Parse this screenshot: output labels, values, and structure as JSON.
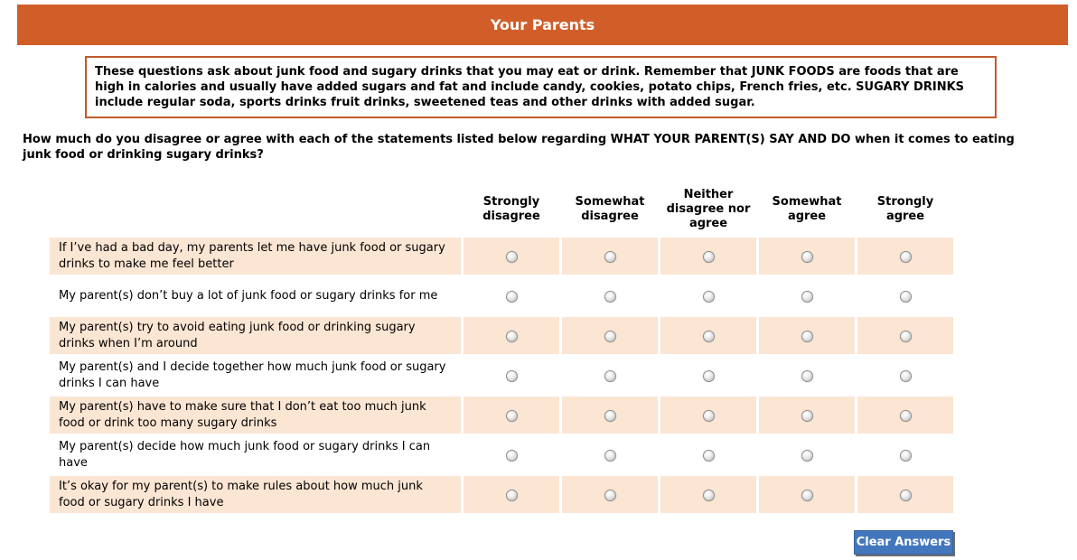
{
  "header": {
    "title": "Your Parents"
  },
  "instructions": {
    "text": "These questions ask about junk food and sugary drinks that you may eat or drink. Remember that JUNK FOODS are foods that are high in calories and usually have added sugars and fat and include candy, cookies, potato chips, French fries, etc. SUGARY DRINKS include regular soda, sports drinks fruit drinks, sweetened teas and other drinks with added sugar."
  },
  "question": {
    "text": "How much do you disagree or agree with each of the statements listed below regarding WHAT YOUR PARENT(S) SAY AND DO when it comes to eating junk food or drinking sugary drinks?"
  },
  "matrix": {
    "columns": [
      "Strongly disagree",
      "Somewhat disagree",
      "Neither disagree nor agree",
      "Somewhat agree",
      "Strongly agree"
    ],
    "rows": [
      {
        "statement": "If I’ve had a bad day, my parents let me have junk food or sugary drinks to make me feel better"
      },
      {
        "statement": "My parent(s) don’t buy a lot of junk food or sugary drinks for me"
      },
      {
        "statement": "My parent(s) try to avoid eating junk food or drinking sugary drinks when I’m around"
      },
      {
        "statement": "My parent(s) and I decide together how much junk food or sugary drinks I can have"
      },
      {
        "statement": "My parent(s) have to make sure that I don’t eat too much junk food or drink too many sugary drinks"
      },
      {
        "statement": "My parent(s) decide how much junk food or sugary drinks I can have"
      },
      {
        "statement": "It’s okay for my parent(s) to make rules about how much junk food or sugary drinks I have"
      }
    ]
  },
  "actions": {
    "clear_button_label": "Clear Answers"
  },
  "colors": {
    "header_bar": "#D15E29",
    "instruction_border": "#C05A2B",
    "row_highlight": "#FBE5D3",
    "button_blue": "#4377BD"
  }
}
